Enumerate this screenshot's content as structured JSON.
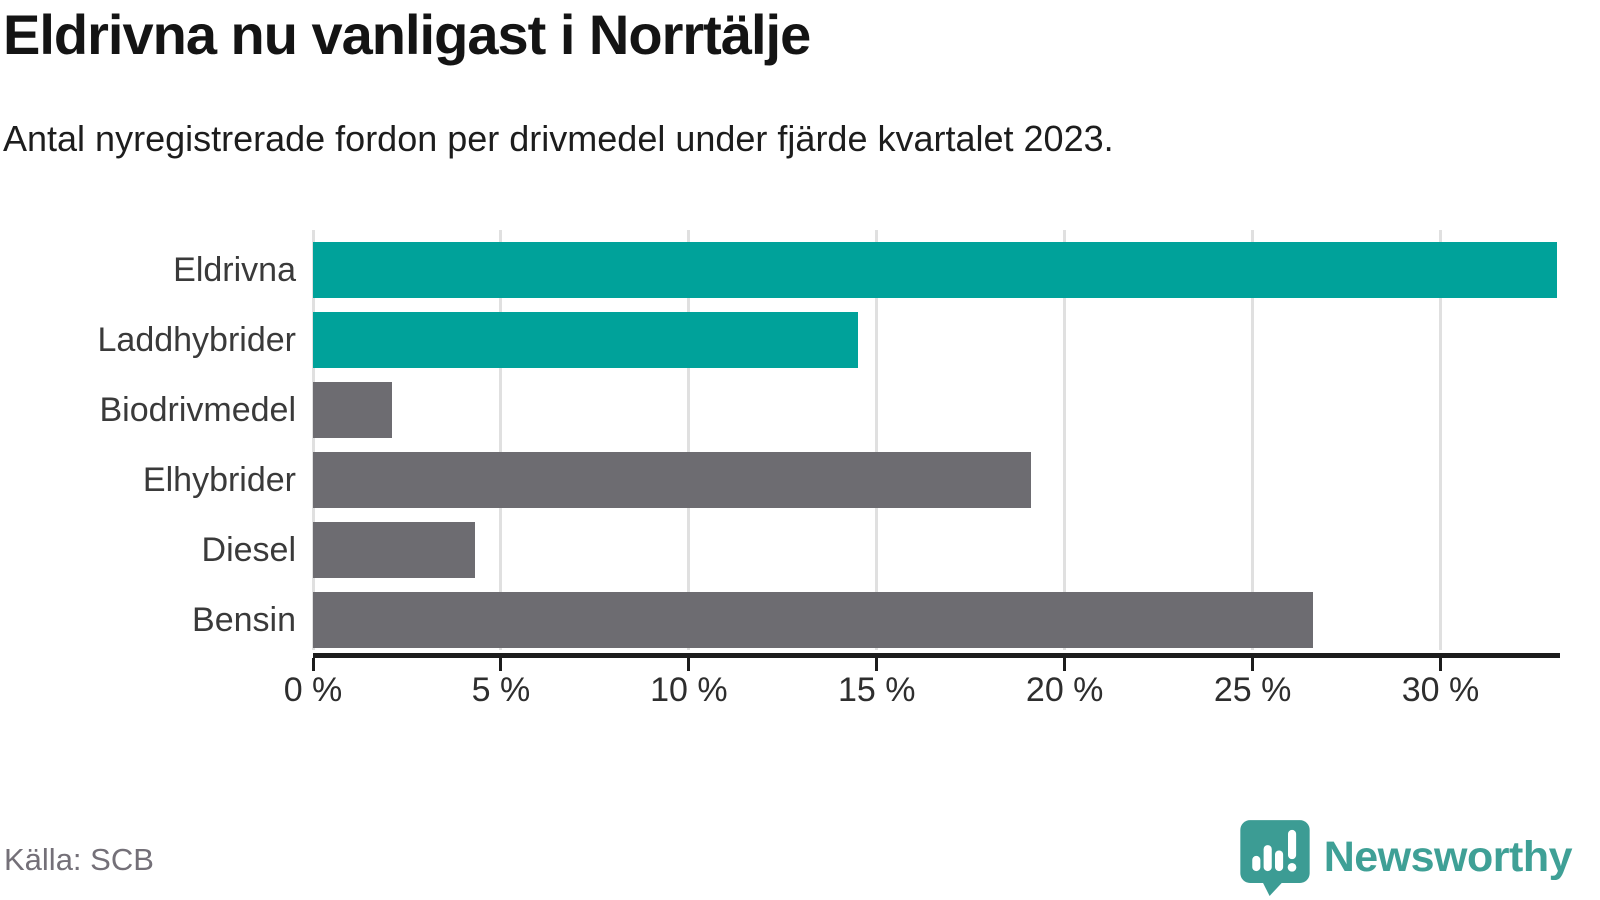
{
  "header": {
    "title": "Eldrivna nu vanligast i Norrtälje",
    "subtitle": "Antal nyregistrerade fordon per drivmedel under fjärde kvartalet 2023."
  },
  "chart_data": {
    "type": "bar",
    "orientation": "horizontal",
    "title": "Eldrivna nu vanligast i Norrtälje",
    "subtitle": "Antal nyregistrerade fordon per drivmedel under fjärde kvartalet 2023.",
    "categories": [
      "Eldrivna",
      "Laddhybrider",
      "Biodrivmedel",
      "Elhybrider",
      "Diesel",
      "Bensin"
    ],
    "values": [
      33.1,
      14.5,
      2.1,
      19.1,
      4.3,
      26.6
    ],
    "unit": "%",
    "bar_colors": [
      "#00a29a",
      "#00a29a",
      "#6d6c71",
      "#6d6c71",
      "#6d6c71",
      "#6d6c71"
    ],
    "highlight_color": "#00a29a",
    "default_color": "#6d6c71",
    "xlim": [
      0,
      33.1
    ],
    "xticks": [
      0,
      5,
      10,
      15,
      20,
      25,
      30
    ],
    "xtick_suffix": " %",
    "grid": true,
    "legend": "none",
    "gridline_color": "#e0e0e0",
    "axis_color": "#1c1c1c"
  },
  "footer": {
    "source": "Källa: SCB",
    "brand": "Newsworthy"
  },
  "icons": {
    "logo": "newsworthy-speech-bubble-chart-icon"
  }
}
